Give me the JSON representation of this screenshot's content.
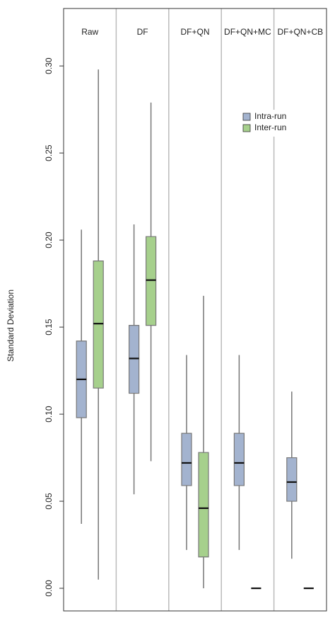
{
  "chart_data": {
    "type": "boxplot",
    "y_label": "Standard Deviation",
    "categories": [
      "Raw",
      "DF",
      "DF+QN",
      "DF+QN+MC",
      "DF+QN+CB"
    ],
    "series": [
      {
        "name": "Intra-run",
        "color": "#a3b3cf",
        "min": [
          0.037,
          0.054,
          0.022,
          0.022,
          0.017
        ],
        "q1": [
          0.098,
          0.112,
          0.059,
          0.059,
          0.05
        ],
        "median": [
          0.12,
          0.132,
          0.072,
          0.072,
          0.061
        ],
        "q3": [
          0.142,
          0.151,
          0.089,
          0.089,
          0.075
        ],
        "max": [
          0.206,
          0.209,
          0.134,
          0.134,
          0.113
        ]
      },
      {
        "name": "Inter-run",
        "color": "#a6d08c",
        "min": [
          0.005,
          0.073,
          0.0,
          0,
          0
        ],
        "q1": [
          0.115,
          0.151,
          0.018,
          0,
          0
        ],
        "median": [
          0.152,
          0.177,
          0.046,
          0,
          0
        ],
        "q3": [
          0.188,
          0.202,
          0.078,
          0,
          0
        ],
        "max": [
          0.298,
          0.279,
          0.168,
          0,
          0
        ]
      }
    ],
    "ylim": [
      -0.013,
      0.333
    ],
    "yticks": [
      {
        "value": 0,
        "label": "0.00"
      },
      {
        "value": 0.05,
        "label": "0.05"
      },
      {
        "value": 0.1,
        "label": "0.10"
      },
      {
        "value": 0.15,
        "label": "0.15"
      },
      {
        "value": 0.2,
        "label": "0.20"
      },
      {
        "value": 0.25,
        "label": "0.25"
      },
      {
        "value": 0.3,
        "label": "0.30"
      }
    ],
    "legend_position": "top-right"
  }
}
